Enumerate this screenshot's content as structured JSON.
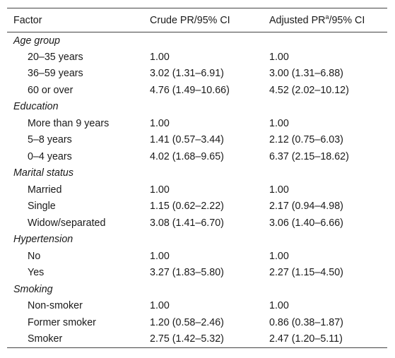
{
  "header": {
    "factor": "Factor",
    "crude": "Crude PR/95% CI",
    "adjusted_prefix": "Adjusted PR",
    "adjusted_sup": "a",
    "adjusted_suffix": "/95% CI"
  },
  "groups": [
    {
      "title": "Age group",
      "rows": [
        {
          "factor": "20–35 years",
          "crude": "1.00",
          "adjusted": "1.00"
        },
        {
          "factor": "36–59 years",
          "crude": "3.02 (1.31–6.91)",
          "adjusted": "3.00 (1.31–6.88)"
        },
        {
          "factor": "60 or over",
          "crude": "4.76 (1.49–10.66)",
          "adjusted": "4.52 (2.02–10.12)"
        }
      ]
    },
    {
      "title": "Education",
      "rows": [
        {
          "factor": "More than 9 years",
          "crude": "1.00",
          "adjusted": "1.00"
        },
        {
          "factor": "5–8 years",
          "crude": "1.41 (0.57–3.44)",
          "adjusted": "2.12 (0.75–6.03)"
        },
        {
          "factor": "0–4 years",
          "crude": "4.02 (1.68–9.65)",
          "adjusted": "6.37 (2.15–18.62)"
        }
      ]
    },
    {
      "title": "Marital status",
      "rows": [
        {
          "factor": "Married",
          "crude": "1.00",
          "adjusted": "1.00"
        },
        {
          "factor": "Single",
          "crude": "1.15 (0.62–2.22)",
          "adjusted": "2.17 (0.94–4.98)"
        },
        {
          "factor": "Widow/separated",
          "crude": "3.08 (1.41–6.70)",
          "adjusted": "3.06 (1.40–6.66)"
        }
      ]
    },
    {
      "title": "Hypertension",
      "rows": [
        {
          "factor": "No",
          "crude": "1.00",
          "adjusted": "1.00"
        },
        {
          "factor": "Yes",
          "crude": "3.27 (1.83–5.80)",
          "adjusted": "2.27 (1.15–4.50)"
        }
      ]
    },
    {
      "title": "Smoking",
      "rows": [
        {
          "factor": "Non-smoker",
          "crude": "1.00",
          "adjusted": "1.00"
        },
        {
          "factor": "Former smoker",
          "crude": "1.20 (0.58–2.46)",
          "adjusted": "0.86 (0.38–1.87)"
        },
        {
          "factor": "Smoker",
          "crude": "2.75 (1.42–5.32)",
          "adjusted": "2.47 (1.20–5.11)"
        }
      ]
    }
  ]
}
